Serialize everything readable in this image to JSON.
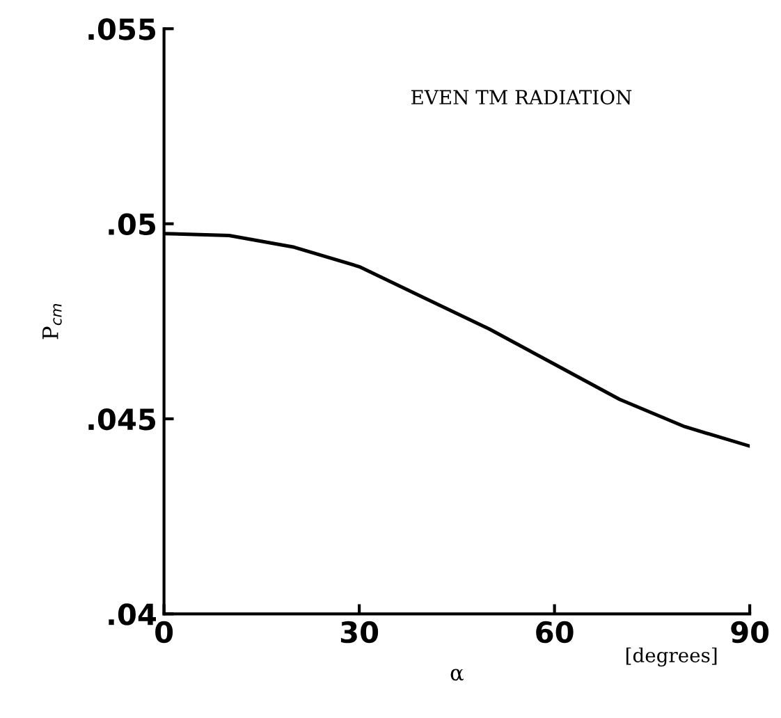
{
  "chart_data": {
    "type": "line",
    "ylabel": "P$_{cm}$",
    "xlabel": "α",
    "annotations": [
      "EVEN TM RADIATION",
      "[degrees]"
    ],
    "x": [
      0,
      10,
      20,
      30,
      40,
      50,
      60,
      70,
      80,
      90
    ],
    "series": [
      {
        "color": "#000000",
        "values": [
          0.04975,
          0.0497,
          0.0494,
          0.0489,
          0.0481,
          0.0473,
          0.0464,
          0.0455,
          0.0448,
          0.0443
        ]
      }
    ],
    "xlim": [
      0,
      90
    ],
    "ylim": [
      0.04,
      0.055
    ],
    "xticks": [
      0,
      30,
      60,
      90
    ],
    "yticks": [
      {
        "value": 0.04,
        "label": ".04"
      },
      {
        "value": 0.045,
        "label": ".045"
      },
      {
        "value": 0.05,
        "label": ".05"
      },
      {
        "value": 0.055,
        "label": ".055"
      }
    ],
    "grid": false,
    "legend": false,
    "marker": "none",
    "line_style": "solid"
  }
}
